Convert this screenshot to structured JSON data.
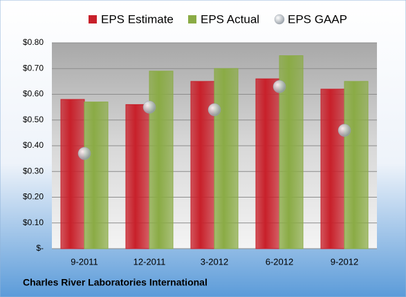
{
  "chart_data": {
    "type": "bar",
    "caption": "Charles River Laboratories International",
    "categories": [
      "9-2011",
      "12-2011",
      "3-2012",
      "6-2012",
      "9-2012"
    ],
    "series": [
      {
        "name": "EPS Estimate",
        "color": "#c8202a",
        "type": "bar",
        "values": [
          0.58,
          0.56,
          0.65,
          0.66,
          0.62
        ]
      },
      {
        "name": "EPS Actual",
        "color": "#8aab45",
        "type": "bar",
        "values": [
          0.57,
          0.69,
          0.7,
          0.75,
          0.65
        ]
      },
      {
        "name": "EPS GAAP",
        "color": "#9aa3ad",
        "type": "scatter",
        "values": [
          0.37,
          0.55,
          0.54,
          0.63,
          0.46
        ]
      }
    ],
    "ylim": [
      0,
      0.8
    ],
    "yticks": [
      {
        "value": 0,
        "label": "$-"
      },
      {
        "value": 0.1,
        "label": "$0.10"
      },
      {
        "value": 0.2,
        "label": "$0.20"
      },
      {
        "value": 0.3,
        "label": "$0.30"
      },
      {
        "value": 0.4,
        "label": "$0.40"
      },
      {
        "value": 0.5,
        "label": "$0.50"
      },
      {
        "value": 0.6,
        "label": "$0.60"
      },
      {
        "value": 0.7,
        "label": "$0.70"
      },
      {
        "value": 0.8,
        "label": "$0.80"
      }
    ],
    "grid": true,
    "legend": "top"
  }
}
